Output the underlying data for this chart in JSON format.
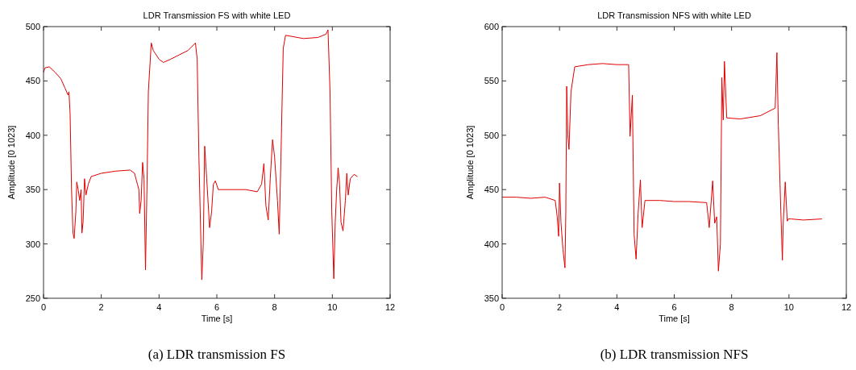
{
  "chart_data": [
    {
      "type": "line",
      "title": "LDR Transmission FS with white LED",
      "xlabel": "Time [s]",
      "ylabel": "Amplitude [0 1023]",
      "annotations": [
        "(a) LDR transmission FS"
      ],
      "xlim": [
        0,
        12
      ],
      "xticks": [
        0,
        2,
        4,
        6,
        8,
        10,
        12
      ],
      "ylim": [
        250,
        500
      ],
      "yticks": [
        250,
        300,
        350,
        400,
        450,
        500
      ],
      "grid": false,
      "series": [
        {
          "color": "#e00000",
          "x": [
            0,
            0.05,
            0.2,
            0.4,
            0.6,
            0.75,
            0.85,
            0.88,
            0.92,
            0.97,
            1.02,
            1.06,
            1.12,
            1.15,
            1.2,
            1.25,
            1.3,
            1.33,
            1.37,
            1.42,
            1.47,
            1.55,
            1.65,
            2.0,
            2.5,
            3.0,
            3.15,
            3.25,
            3.3,
            3.33,
            3.38,
            3.43,
            3.48,
            3.53,
            3.58,
            3.63,
            3.73,
            3.8,
            4.0,
            4.15,
            4.4,
            4.7,
            5.0,
            5.26,
            5.32,
            5.38,
            5.48,
            5.53,
            5.58,
            5.65,
            5.75,
            5.82,
            5.88,
            5.95,
            6.05,
            6.5,
            7.0,
            7.4,
            7.55,
            7.63,
            7.7,
            7.78,
            7.85,
            7.93,
            8.0,
            8.1,
            8.16,
            8.22,
            8.3,
            8.38,
            9.0,
            9.5,
            9.78,
            9.85,
            9.92,
            9.98,
            10.05,
            10.1,
            10.15,
            10.2,
            10.25,
            10.3,
            10.37,
            10.45,
            10.5,
            10.55,
            10.62,
            10.75,
            10.87
          ],
          "values": [
            458,
            462,
            463,
            458,
            452,
            443,
            437,
            440,
            420,
            350,
            310,
            305,
            330,
            357,
            350,
            340,
            350,
            310,
            320,
            360,
            345,
            355,
            362,
            365,
            367,
            368,
            365,
            355,
            350,
            328,
            340,
            375,
            360,
            276,
            350,
            440,
            485,
            478,
            470,
            467,
            470,
            474,
            478,
            485,
            470,
            380,
            267,
            300,
            390,
            360,
            315,
            330,
            355,
            358,
            350,
            350,
            350,
            348,
            355,
            374,
            335,
            322,
            360,
            396,
            380,
            340,
            309,
            380,
            480,
            492,
            489,
            490,
            493,
            497,
            440,
            330,
            268,
            320,
            350,
            370,
            355,
            320,
            312,
            340,
            365,
            345,
            360,
            364,
            362
          ]
        }
      ]
    },
    {
      "type": "line",
      "title": "LDR Transmission NFS with white LED",
      "xlabel": "Time [s]",
      "ylabel": "Amplitude [0 1023]",
      "annotations": [
        "(b) LDR transmission NFS"
      ],
      "xlim": [
        0,
        12
      ],
      "xticks": [
        0,
        2,
        4,
        6,
        8,
        10,
        12
      ],
      "ylim": [
        350,
        600
      ],
      "yticks": [
        350,
        400,
        450,
        500,
        550,
        600
      ],
      "grid": false,
      "series": [
        {
          "color": "#e00000",
          "x": [
            0,
            0.5,
            1.0,
            1.5,
            1.85,
            1.92,
            1.97,
            2.0,
            2.05,
            2.12,
            2.19,
            2.22,
            2.25,
            2.29,
            2.33,
            2.4,
            2.53,
            3.0,
            3.5,
            4.0,
            4.41,
            4.46,
            4.54,
            4.6,
            4.67,
            4.74,
            4.82,
            4.88,
            4.98,
            5.5,
            6.0,
            6.5,
            7.13,
            7.22,
            7.34,
            7.41,
            7.48,
            7.54,
            7.61,
            7.66,
            7.71,
            7.75,
            7.83,
            8.3,
            9.0,
            9.52,
            9.58,
            9.63,
            9.71,
            9.77,
            9.8,
            9.87,
            9.94,
            9.98,
            10.07,
            10.5,
            11.15
          ],
          "values": [
            443,
            443,
            442,
            443,
            440,
            425,
            407,
            456,
            420,
            395,
            378,
            430,
            545,
            500,
            487,
            540,
            563,
            565,
            566,
            565,
            565,
            499,
            537,
            409,
            386,
            428,
            459,
            415,
            440,
            440,
            439,
            439,
            438,
            415,
            458,
            419,
            425,
            375,
            400,
            553,
            514,
            568,
            516,
            515,
            518,
            525,
            576,
            509,
            436,
            385,
            419,
            457,
            421,
            423,
            423,
            422,
            423
          ]
        }
      ]
    }
  ]
}
